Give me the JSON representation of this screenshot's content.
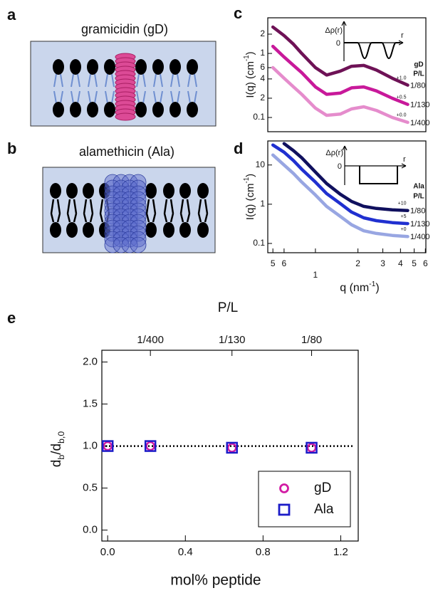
{
  "panel_labels": [
    "a",
    "b",
    "c",
    "d",
    "e"
  ],
  "diagrams": [
    {
      "title": "gramicidin (gD)"
    },
    {
      "title": "alamethicin (Ala)"
    }
  ],
  "chart_data": [
    {
      "type": "line",
      "log_x": true,
      "log_y": true,
      "ylabel": [
        "I(q) (cm",
        "-1",
        ")"
      ],
      "x": [
        0.5,
        0.6,
        0.7,
        0.8,
        1.0,
        1.2,
        1.5,
        1.8,
        2.2,
        2.7,
        3.5,
        4.5
      ],
      "xlim": [
        0.46,
        6.05
      ],
      "ylim": [
        0.06,
        3.6
      ],
      "yticks": [
        2,
        1,
        {
          "value": 0.6,
          "label": "6"
        },
        {
          "value": 0.4,
          "label": "4"
        },
        {
          "value": 0.2,
          "label": "2"
        },
        0.1
      ],
      "legend_title": [
        "gD",
        "P/L"
      ],
      "inset": {
        "ylabel": "Δρ(r)",
        "xlabel": "r",
        "origin_label": "0"
      },
      "series": [
        {
          "name": "1/80",
          "color": "#6e1256",
          "offset_label": "+1.0",
          "values": [
            2.58,
            1.9,
            1.39,
            1.0,
            0.6,
            0.46,
            0.53,
            0.63,
            0.65,
            0.55,
            0.41,
            0.32
          ]
        },
        {
          "name": "1/130",
          "color": "#c8199a",
          "offset_label": "+0.5",
          "values": [
            1.29,
            0.88,
            0.65,
            0.5,
            0.3,
            0.23,
            0.24,
            0.29,
            0.3,
            0.26,
            0.2,
            0.16
          ]
        },
        {
          "name": "1/400",
          "color": "#e58ccc",
          "offset_label": "+0.0",
          "values": [
            0.6,
            0.41,
            0.3,
            0.23,
            0.14,
            0.108,
            0.113,
            0.136,
            0.147,
            0.129,
            0.1,
            0.084
          ]
        }
      ]
    },
    {
      "type": "line",
      "log_x": true,
      "log_y": true,
      "ylabel": [
        "I(q) (cm",
        "-1",
        ")"
      ],
      "xlabel": [
        "q (nm",
        "-1",
        ")"
      ],
      "x": [
        0.5,
        0.6,
        0.7,
        0.8,
        1.0,
        1.2,
        1.5,
        1.8,
        2.2,
        2.7,
        3.5,
        4.5
      ],
      "xlim": [
        0.46,
        6.05
      ],
      "ylim": [
        0.058,
        41
      ],
      "xticks": [
        {
          "value": 0.5,
          "label": "5"
        },
        {
          "value": 0.6,
          "label": "6"
        },
        1,
        2,
        3,
        4,
        5,
        6
      ],
      "yticks": [
        10,
        1,
        0.1
      ],
      "legend_title": [
        "Ala",
        "P/L"
      ],
      "inset": {
        "ylabel": "Δρ(r)",
        "xlabel": "r",
        "origin_label": "0"
      },
      "series": [
        {
          "name": "1/80",
          "color": "#10105e",
          "offset_label": "+10",
          "values": [
            null,
            35.1,
            23.1,
            15.2,
            6.6,
            3.37,
            1.8,
            1.18,
            0.88,
            0.78,
            0.72,
            0.69
          ]
        },
        {
          "name": "1/130",
          "color": "#2030d0",
          "offset_label": "+5",
          "values": [
            32.3,
            21.2,
            12.9,
            7.8,
            3.66,
            1.87,
            1.04,
            0.63,
            0.45,
            0.38,
            0.34,
            0.32
          ]
        },
        {
          "name": "1/400",
          "color": "#98a6e2",
          "offset_label": "+0",
          "values": [
            18.0,
            10,
            6.05,
            3.66,
            1.72,
            0.88,
            0.49,
            0.3,
            0.21,
            0.18,
            0.16,
            0.15
          ]
        }
      ]
    },
    {
      "type": "scatter",
      "top_xlabel": "P/L",
      "xlabel": "mol% peptide",
      "ylabel": [
        "d",
        "b",
        "/d",
        "b,0"
      ],
      "x": [
        0,
        0.22,
        0.64,
        1.05
      ],
      "xlim": [
        -0.03,
        1.29
      ],
      "ylim": [
        -0.13,
        2.14
      ],
      "xticks": [
        {
          "value": 0,
          "label": "0.0"
        },
        0.4,
        0.8,
        1.2
      ],
      "top_xticks": [
        {
          "value": 0.22,
          "label": "1/400"
        },
        {
          "value": 0.64,
          "label": "1/130"
        },
        {
          "value": 1.05,
          "label": "1/80"
        }
      ],
      "yticks": [
        {
          "value": 0,
          "label": "0.0"
        },
        0.5,
        {
          "value": 1,
          "label": "1.0"
        },
        1.5,
        {
          "value": 2,
          "label": "2.0"
        }
      ],
      "reference_line": 1,
      "legend": "lower right",
      "series": [
        {
          "name": "gD",
          "marker": "circle",
          "color": "#d21ca4",
          "values": [
            1.0,
            1.0,
            0.98,
            0.98
          ]
        },
        {
          "name": "Ala",
          "marker": "square",
          "color": "#1c1cc8",
          "values": [
            1.0,
            1.0,
            0.98,
            0.98
          ]
        }
      ]
    }
  ]
}
